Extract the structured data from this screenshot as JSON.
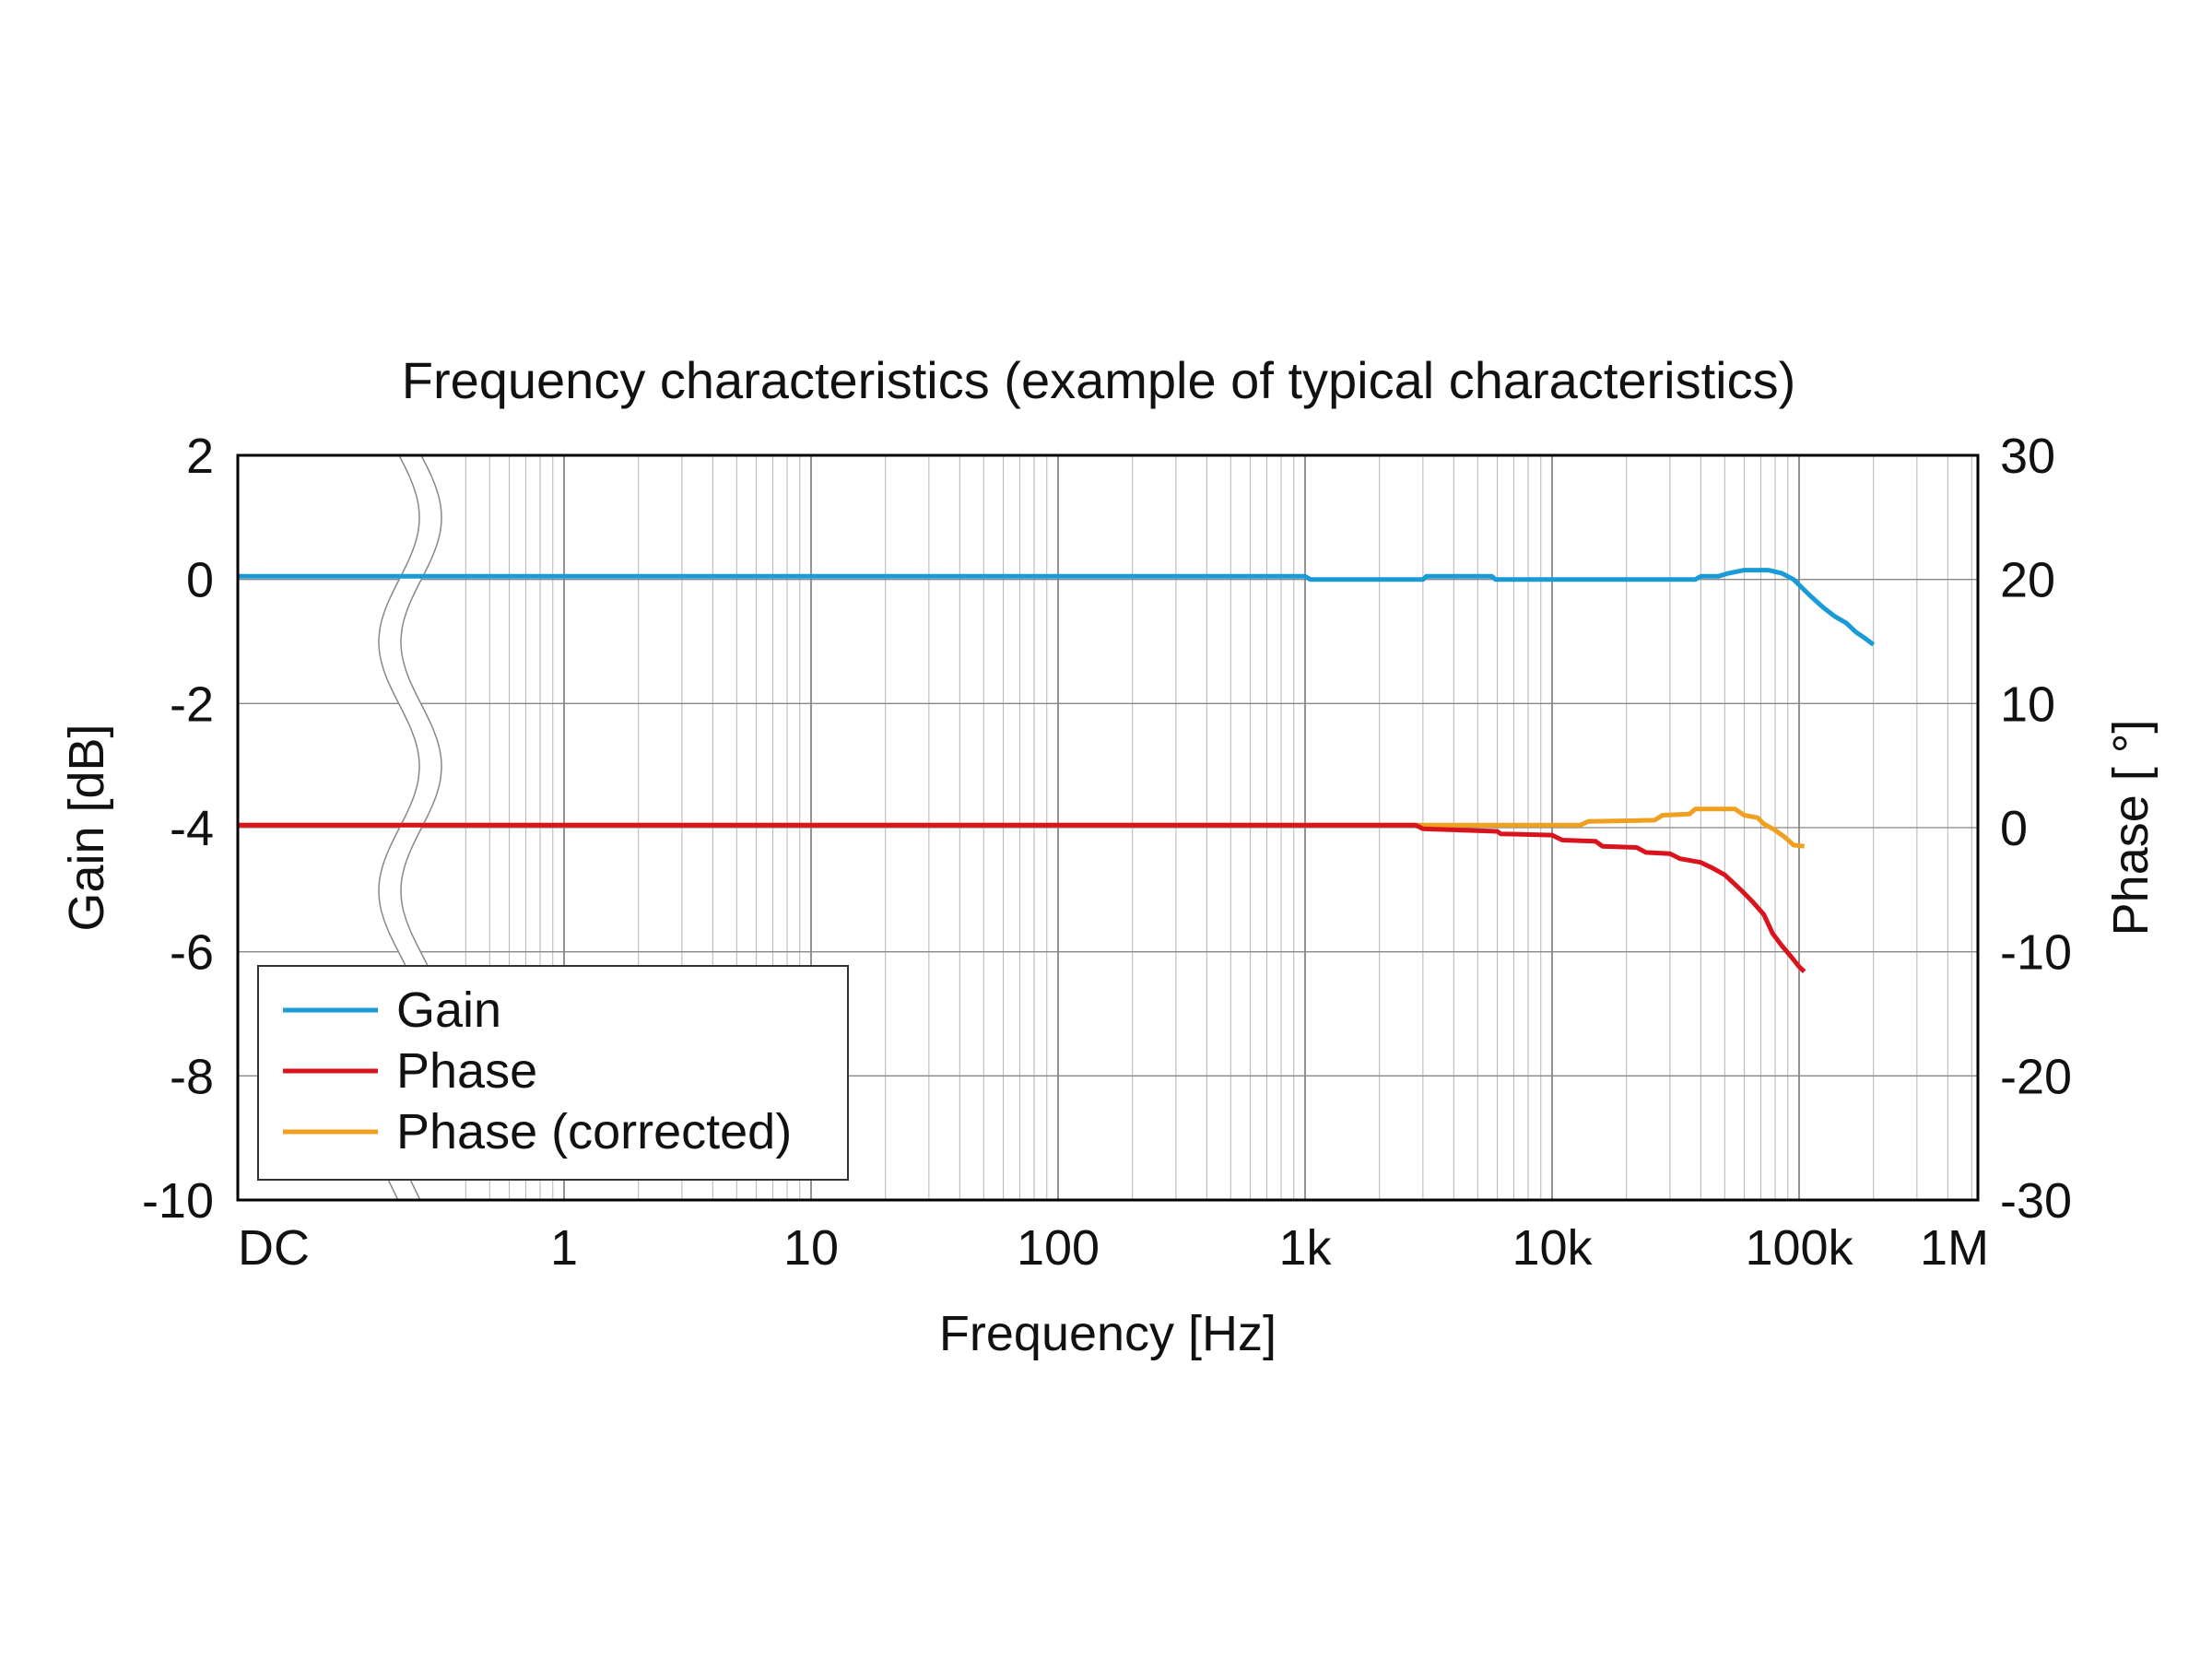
{
  "chart_data": {
    "type": "line",
    "title": "Frequency characteristics (example of typical characteristics)",
    "xlabel": "Frequency [Hz]",
    "ylabel_left": "Gain [dB]",
    "ylabel_right": "Phase [ °]",
    "x_scale": "log",
    "x_axis_break": true,
    "x_ticks": [
      "DC",
      "1",
      "10",
      "100",
      "1k",
      "10k",
      "100k",
      "1M"
    ],
    "y_left_ticks": [
      "2",
      "0",
      "-2",
      "-4",
      "-6",
      "-8",
      "-10"
    ],
    "y_right_ticks": [
      "30",
      "20",
      "10",
      "0",
      "-10",
      "-20",
      "-30"
    ],
    "ylim_left": [
      -10,
      2
    ],
    "ylim_right": [
      -30,
      30
    ],
    "grid": true,
    "legend_position": "bottom-left",
    "series": [
      {
        "name": "Gain",
        "axis": "left",
        "color": "#1a9ad6",
        "points": [
          [
            "DC",
            0.05
          ],
          [
            1,
            0.05
          ],
          [
            1000,
            0.05
          ],
          [
            1050,
            0.0
          ],
          [
            3000,
            0.0
          ],
          [
            3100,
            0.05
          ],
          [
            5700,
            0.05
          ],
          [
            5900,
            0.0
          ],
          [
            38000,
            0.0
          ],
          [
            40000,
            0.05
          ],
          [
            47000,
            0.05
          ],
          [
            52000,
            0.1
          ],
          [
            60000,
            0.15
          ],
          [
            75000,
            0.15
          ],
          [
            85000,
            0.1
          ],
          [
            95000,
            0.0
          ],
          [
            110000,
            -0.25
          ],
          [
            125000,
            -0.45
          ],
          [
            140000,
            -0.6
          ],
          [
            155000,
            -0.7
          ],
          [
            170000,
            -0.85
          ],
          [
            185000,
            -0.95
          ],
          [
            200000,
            -1.05
          ]
        ]
      },
      {
        "name": "Phase",
        "axis": "right",
        "color": "#d9141c",
        "points": [
          [
            "DC",
            0.2
          ],
          [
            1,
            0.2
          ],
          [
            2800,
            0.2
          ],
          [
            3000,
            -0.1
          ],
          [
            6000,
            -0.3
          ],
          [
            6200,
            -0.5
          ],
          [
            10000,
            -0.6
          ],
          [
            11000,
            -1.0
          ],
          [
            15000,
            -1.1
          ],
          [
            16000,
            -1.5
          ],
          [
            22000,
            -1.6
          ],
          [
            24000,
            -2.0
          ],
          [
            30000,
            -2.1
          ],
          [
            33000,
            -2.5
          ],
          [
            40000,
            -2.8
          ],
          [
            45000,
            -3.3
          ],
          [
            50000,
            -3.8
          ],
          [
            58000,
            -5.0
          ],
          [
            65000,
            -6.0
          ],
          [
            72000,
            -7.0
          ],
          [
            78000,
            -8.5
          ],
          [
            85000,
            -9.5
          ],
          [
            92000,
            -10.3
          ],
          [
            100000,
            -11.2
          ],
          [
            105000,
            -11.6
          ]
        ]
      },
      {
        "name": "Phase (corrected)",
        "axis": "right",
        "color": "#f0a020",
        "points": [
          [
            "DC",
            0.2
          ],
          [
            1,
            0.2
          ],
          [
            13000,
            0.2
          ],
          [
            14000,
            0.5
          ],
          [
            26000,
            0.6
          ],
          [
            28000,
            1.0
          ],
          [
            36000,
            1.1
          ],
          [
            38000,
            1.5
          ],
          [
            55000,
            1.5
          ],
          [
            60000,
            1.0
          ],
          [
            68000,
            0.8
          ],
          [
            72000,
            0.3
          ],
          [
            80000,
            -0.2
          ],
          [
            88000,
            -0.8
          ],
          [
            95000,
            -1.4
          ],
          [
            105000,
            -1.5
          ]
        ]
      }
    ]
  }
}
